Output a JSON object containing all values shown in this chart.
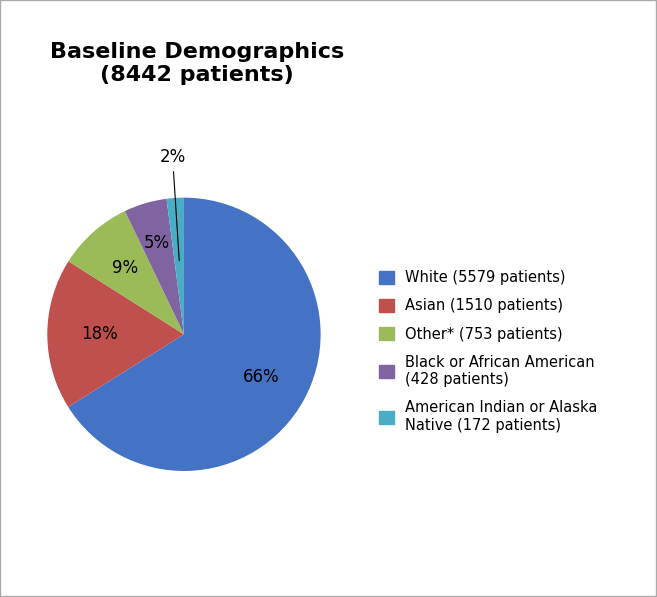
{
  "title": "Baseline Demographics\n(8442 patients)",
  "title_fontsize": 16,
  "title_fontweight": "bold",
  "slices": [
    5579,
    1510,
    753,
    428,
    172
  ],
  "labels": [
    "66%",
    "18%",
    "9%",
    "5%",
    "2%"
  ],
  "colors": [
    "#4472C4",
    "#C0504D",
    "#9BBB59",
    "#8064A2",
    "#4BACC6"
  ],
  "legend_labels": [
    "White (5579 patients)",
    "Asian (1510 patients)",
    "Other* (753 patients)",
    "Black or African American\n(428 patients)",
    "American Indian or Alaska\nNative (172 patients)"
  ],
  "startangle": 90,
  "background_color": "#ffffff",
  "label_fontsize": 12,
  "legend_fontsize": 10.5,
  "border_color": "#aaaaaa"
}
